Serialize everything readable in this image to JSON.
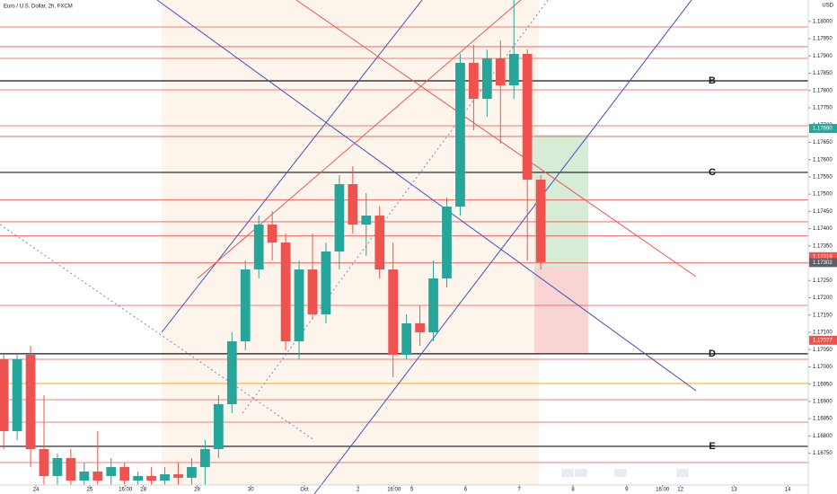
{
  "chart_data": {
    "type": "candlestick",
    "title": "Euro / U.S. Dollar, 2h, FXCM",
    "currency": "USD",
    "up_color": "#26a69a",
    "down_color": "#ef5350",
    "xlim": [
      -0.669,
      14.381
    ],
    "ylim": [
      1.16658,
      1.18062
    ],
    "xticks": [
      {
        "value": 0,
        "label": "24"
      },
      {
        "value": 1,
        "label": "25"
      },
      {
        "value": 1.667,
        "label": "16:00"
      },
      {
        "value": 2,
        "label": "28"
      },
      {
        "value": 3,
        "label": "29"
      },
      {
        "value": 4,
        "label": "30"
      },
      {
        "value": 5,
        "label": "Oct"
      },
      {
        "value": 6,
        "label": "2"
      },
      {
        "value": 6.667,
        "label": "16:00"
      },
      {
        "value": 7,
        "label": "5"
      },
      {
        "value": 8,
        "label": "6"
      },
      {
        "value": 9,
        "label": "7"
      },
      {
        "value": 10,
        "label": "8"
      },
      {
        "value": 11,
        "label": "9"
      },
      {
        "value": 11.667,
        "label": "16:00"
      },
      {
        "value": 12,
        "label": "12"
      },
      {
        "value": 13,
        "label": "13"
      },
      {
        "value": 14,
        "label": "14"
      }
    ],
    "yticks": [
      {
        "value": 1.1675,
        "label": "1.16750"
      },
      {
        "value": 1.168,
        "label": "1.16800"
      },
      {
        "value": 1.1685,
        "label": "1.16850"
      },
      {
        "value": 1.169,
        "label": "1.16900"
      },
      {
        "value": 1.1695,
        "label": "1.16950"
      },
      {
        "value": 1.17,
        "label": "1.17000"
      },
      {
        "value": 1.1705,
        "label": "1.17050"
      },
      {
        "value": 1.171,
        "label": "1.17100"
      },
      {
        "value": 1.1715,
        "label": "1.17150"
      },
      {
        "value": 1.172,
        "label": "1.17200"
      },
      {
        "value": 1.1725,
        "label": "1.17250"
      },
      {
        "value": 1.173,
        "label": "1.17300"
      },
      {
        "value": 1.1735,
        "label": "1.17350"
      },
      {
        "value": 1.174,
        "label": "1.17400"
      },
      {
        "value": 1.1745,
        "label": "1.17450"
      },
      {
        "value": 1.175,
        "label": "1.17500"
      },
      {
        "value": 1.1755,
        "label": "1.17550"
      },
      {
        "value": 1.176,
        "label": "1.17600"
      },
      {
        "value": 1.1765,
        "label": "1.17650"
      },
      {
        "value": 1.177,
        "label": "1.17700"
      },
      {
        "value": 1.1775,
        "label": "1.17750"
      },
      {
        "value": 1.178,
        "label": "1.17800"
      },
      {
        "value": 1.1785,
        "label": "1.17850"
      },
      {
        "value": 1.179,
        "label": "1.17900"
      },
      {
        "value": 1.1795,
        "label": "1.17950"
      },
      {
        "value": 1.18,
        "label": "1.18000"
      }
    ],
    "x": [
      -0.6,
      -0.35,
      -0.1,
      0.15,
      0.4,
      0.65,
      0.9,
      1.15,
      1.4,
      1.65,
      1.9,
      2.15,
      2.4,
      2.65,
      2.9,
      3.15,
      3.4,
      3.65,
      3.9,
      4.15,
      4.4,
      4.65,
      4.9,
      5.15,
      5.4,
      5.65,
      5.9,
      6.15,
      6.4,
      6.65,
      6.9,
      7.15,
      7.4,
      7.65,
      7.9,
      8.15,
      8.4,
      8.65,
      8.9,
      9.15,
      9.4
    ],
    "open": [
      1.17022,
      1.16814,
      1.17035,
      1.16762,
      1.16684,
      1.16736,
      1.16671,
      1.16697,
      1.16684,
      1.1671,
      1.16671,
      1.16684,
      1.16671,
      1.16689,
      1.16679,
      1.1671,
      1.16762,
      1.16892,
      1.17074,
      1.17282,
      1.17412,
      1.1736,
      1.17074,
      1.17282,
      1.17152,
      1.17334,
      1.17529,
      1.17412,
      1.17438,
      1.17282,
      1.17035,
      1.17126,
      1.171,
      1.17256,
      1.17464,
      1.1788,
      1.17776,
      1.17893,
      1.17815,
      1.17906,
      1.17542
    ],
    "high": [
      1.17035,
      1.17035,
      1.17061,
      1.16918,
      1.16749,
      1.16762,
      1.16723,
      1.16814,
      1.16736,
      1.16723,
      1.16697,
      1.1671,
      1.1671,
      1.16723,
      1.16736,
      1.16788,
      1.16918,
      1.171,
      1.17308,
      1.17438,
      1.17451,
      1.17386,
      1.17308,
      1.17386,
      1.1736,
      1.17555,
      1.17581,
      1.17503,
      1.17464,
      1.1736,
      1.17152,
      1.17178,
      1.17308,
      1.1749,
      1.17906,
      1.17932,
      1.17919,
      1.17945,
      1.18062,
      1.17919,
      1.17555
    ],
    "low": [
      1.16762,
      1.16788,
      1.1671,
      1.16658,
      1.16658,
      1.16658,
      1.16658,
      1.16658,
      1.16658,
      1.16658,
      1.16658,
      1.16658,
      1.16658,
      1.16658,
      1.16658,
      1.16658,
      1.16736,
      1.16866,
      1.17048,
      1.17256,
      1.17308,
      1.17048,
      1.17022,
      1.17139,
      1.17126,
      1.17282,
      1.17386,
      1.17321,
      1.17256,
      1.1697,
      1.17022,
      1.17061,
      1.17074,
      1.1723,
      1.17438,
      1.17685,
      1.17724,
      1.17646,
      1.17776,
      1.17308,
      1.17282
    ],
    "close": [
      1.16814,
      1.17022,
      1.16762,
      1.16684,
      1.16736,
      1.16671,
      1.16697,
      1.16671,
      1.1671,
      1.16671,
      1.16684,
      1.16671,
      1.16689,
      1.16679,
      1.1671,
      1.16762,
      1.16892,
      1.17074,
      1.17282,
      1.17412,
      1.1736,
      1.17074,
      1.17282,
      1.17152,
      1.17334,
      1.17529,
      1.17412,
      1.17438,
      1.17282,
      1.17035,
      1.17126,
      1.171,
      1.17256,
      1.17464,
      1.1788,
      1.17776,
      1.17893,
      1.17815,
      1.17906,
      1.17542,
      1.17303
    ],
    "red_levels": [
      1.17984,
      1.17927,
      1.17893,
      1.17802,
      1.17698,
      1.17667,
      1.17483,
      1.1742,
      1.17379,
      1.17301,
      1.17178,
      1.17022,
      1.16905,
      1.1684,
      1.16723
    ],
    "orange_level": 1.16952,
    "key_levels": [
      {
        "value": 1.17828,
        "label": "B"
      },
      {
        "value": 1.17563,
        "label": "C"
      },
      {
        "value": 1.17038,
        "label": "D"
      },
      {
        "value": 1.1677,
        "label": "E"
      }
    ],
    "price_labels": [
      {
        "value": 1.1769,
        "label": "1.17690",
        "color": "#26a69a"
      },
      {
        "value": 1.17319,
        "label": "1.17319",
        "color": "#ef5350"
      },
      {
        "value": 1.17302,
        "label": "1.17302",
        "color": "#5d606b"
      },
      {
        "value": 1.17077,
        "label": "1.17077",
        "color": "#ef5350"
      }
    ]
  }
}
